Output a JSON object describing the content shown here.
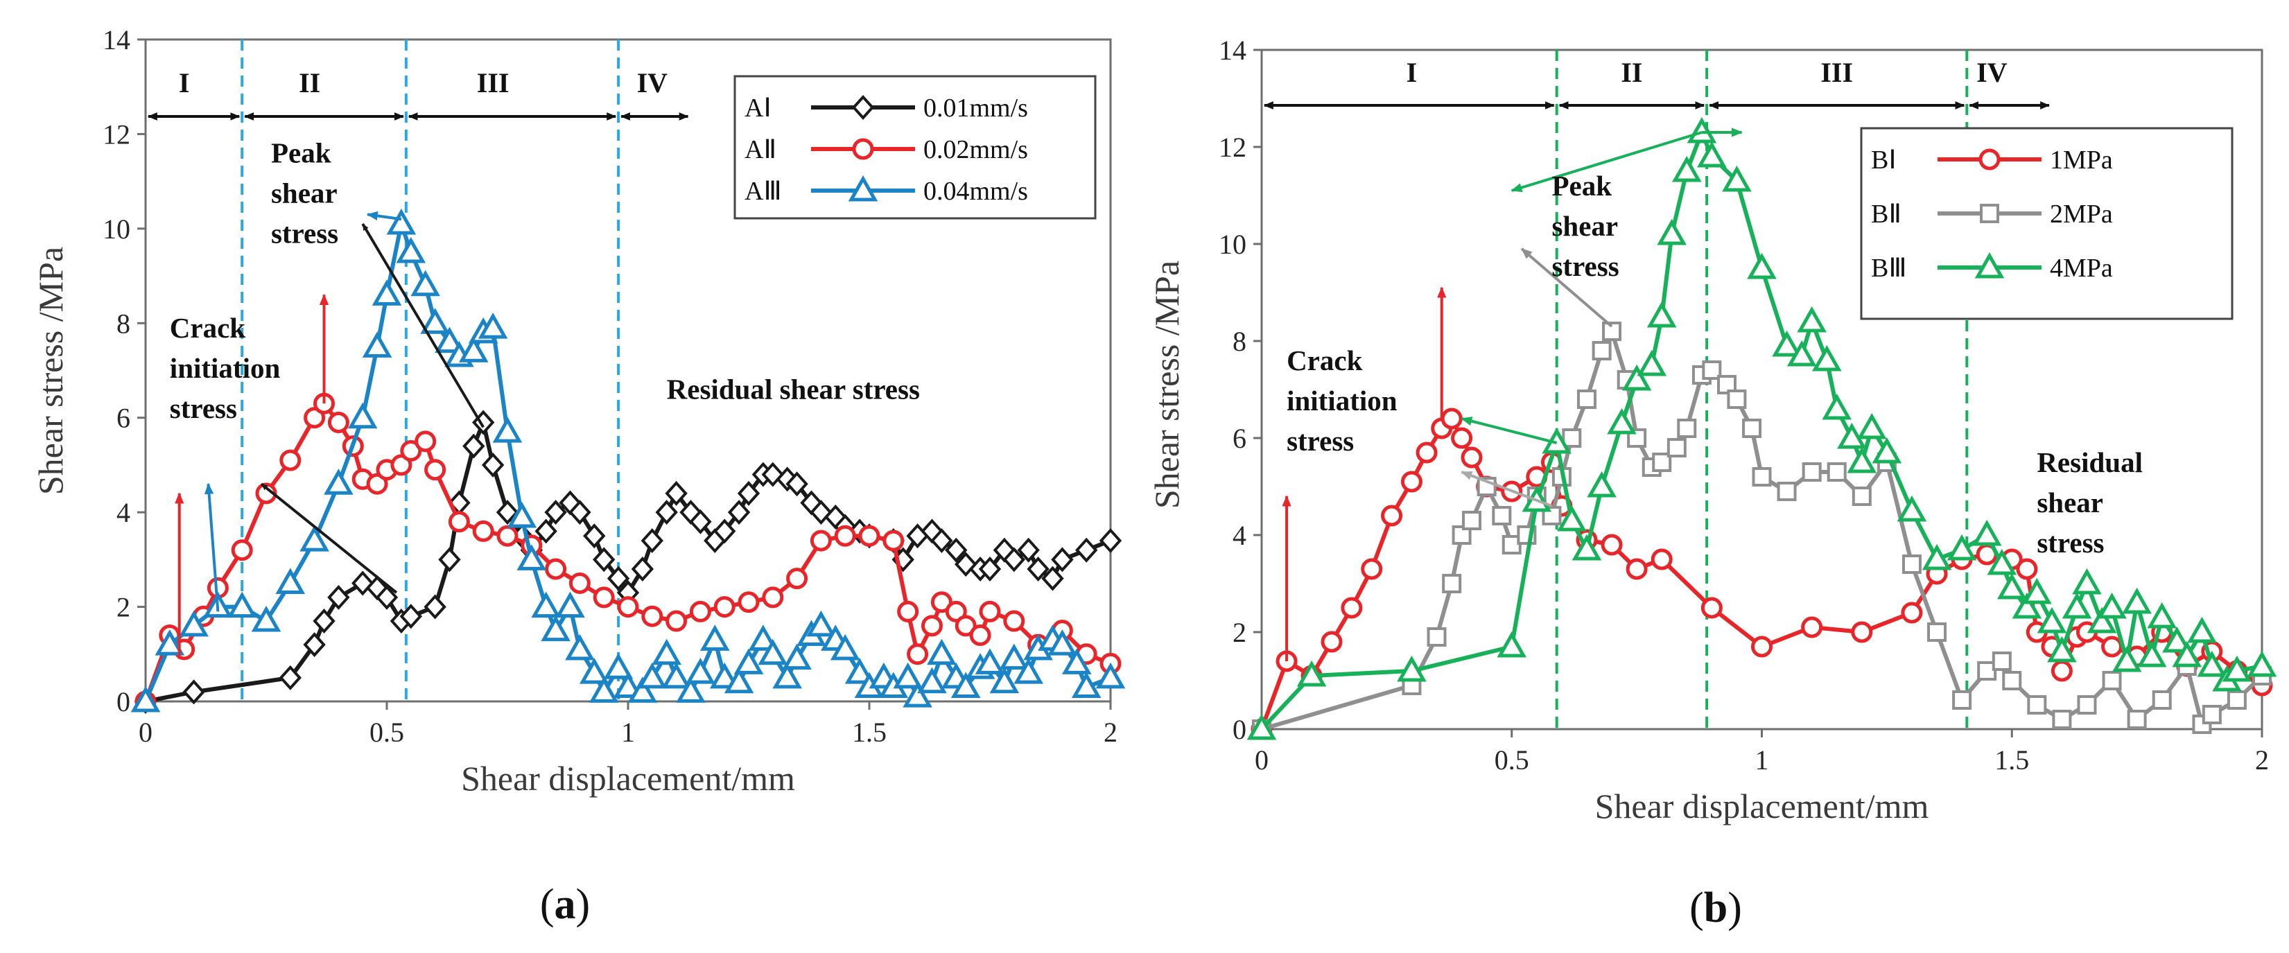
{
  "chart_data": [
    {
      "type": "line",
      "panel_label": "a",
      "xlabel": "Shear displacement/mm",
      "ylabel": "Shear stress /MPa",
      "xlim": [
        0,
        2
      ],
      "ylim": [
        0,
        14
      ],
      "xticks": [
        "0",
        "0.5",
        "1",
        "1.5",
        "2"
      ],
      "yticks": [
        "0",
        "2",
        "4",
        "6",
        "8",
        "10",
        "12",
        "14"
      ],
      "grid": false,
      "legend_position": "top-right",
      "stage_boundaries": [
        0.2,
        0.54,
        0.98
      ],
      "stage_label_positions": [
        0.08,
        0.34,
        0.72,
        1.05
      ],
      "stages": [
        "I",
        "II",
        "III",
        "IV"
      ],
      "annotations": [
        {
          "text": "Peak\nshear\nstress",
          "x": 0.26,
          "y": 11.4
        },
        {
          "text": "Crack\ninitiation\nstress",
          "x": 0.05,
          "y": 7.7
        },
        {
          "text": "Residual shear stress",
          "x": 1.08,
          "y": 6.4
        }
      ],
      "arrows": [
        {
          "from": [
            0.07,
            0.9
          ],
          "to": [
            0.07,
            4.4
          ],
          "color": "#e8262a"
        },
        {
          "from": [
            0.15,
            1.9
          ],
          "to": [
            0.13,
            4.6
          ],
          "color": "#1a84c6"
        },
        {
          "from": [
            0.37,
            6.3
          ],
          "to": [
            0.37,
            8.6
          ],
          "color": "#e8262a"
        },
        {
          "from": [
            0.52,
            2.3
          ],
          "to": [
            0.24,
            4.6
          ],
          "color": "#1a1a1a"
        },
        {
          "from": [
            0.7,
            5.8
          ],
          "to": [
            0.45,
            10.1
          ],
          "color": "#1a1a1a"
        },
        {
          "from": [
            0.53,
            10.2
          ],
          "to": [
            0.46,
            10.3
          ],
          "color": "#1a84c6"
        }
      ],
      "series": [
        {
          "name": "AⅠ",
          "rate": "0.01mm/s",
          "color": "#1a1a1a",
          "marker": "diamond",
          "x": [
            0,
            0.1,
            0.3,
            0.35,
            0.37,
            0.4,
            0.45,
            0.48,
            0.5,
            0.53,
            0.55,
            0.6,
            0.63,
            0.65,
            0.68,
            0.7,
            0.72,
            0.75,
            0.78,
            0.8,
            0.83,
            0.85,
            0.88,
            0.9,
            0.93,
            0.95,
            0.98,
            1.0,
            1.03,
            1.05,
            1.08,
            1.1,
            1.13,
            1.15,
            1.18,
            1.2,
            1.23,
            1.25,
            1.28,
            1.3,
            1.33,
            1.35,
            1.38,
            1.4,
            1.43,
            1.45,
            1.48,
            1.5,
            1.55,
            1.57,
            1.6,
            1.63,
            1.65,
            1.68,
            1.7,
            1.73,
            1.75,
            1.78,
            1.8,
            1.83,
            1.85,
            1.88,
            1.9,
            1.95,
            2.0
          ],
          "y": [
            0,
            0.2,
            0.5,
            1.2,
            1.7,
            2.2,
            2.5,
            2.4,
            2.2,
            1.7,
            1.8,
            2.0,
            3.0,
            4.2,
            5.4,
            5.9,
            5.0,
            4.0,
            3.5,
            3.2,
            3.6,
            4.0,
            4.2,
            4.0,
            3.5,
            3.0,
            2.6,
            2.3,
            2.8,
            3.4,
            4.0,
            4.4,
            4.0,
            3.8,
            3.4,
            3.6,
            4.0,
            4.4,
            4.8,
            4.8,
            4.7,
            4.6,
            4.2,
            4.0,
            3.9,
            3.7,
            3.6,
            3.5,
            3.4,
            3.0,
            3.5,
            3.6,
            3.4,
            3.2,
            2.9,
            2.8,
            2.8,
            3.2,
            3.0,
            3.2,
            2.8,
            2.6,
            3.0,
            3.2,
            3.4
          ]
        },
        {
          "name": "AⅡ",
          "rate": "0.02mm/s",
          "color": "#e8262a",
          "marker": "circle",
          "x": [
            0,
            0.05,
            0.08,
            0.12,
            0.15,
            0.2,
            0.25,
            0.3,
            0.35,
            0.37,
            0.4,
            0.43,
            0.45,
            0.48,
            0.5,
            0.53,
            0.55,
            0.58,
            0.6,
            0.65,
            0.7,
            0.75,
            0.8,
            0.85,
            0.9,
            0.95,
            1.0,
            1.05,
            1.1,
            1.15,
            1.2,
            1.25,
            1.3,
            1.35,
            1.4,
            1.45,
            1.5,
            1.55,
            1.58,
            1.6,
            1.63,
            1.65,
            1.68,
            1.7,
            1.73,
            1.75,
            1.8,
            1.85,
            1.9,
            1.95,
            2.0
          ],
          "y": [
            0,
            1.4,
            1.1,
            1.8,
            2.4,
            3.2,
            4.4,
            5.1,
            6.0,
            6.3,
            5.9,
            5.4,
            4.7,
            4.6,
            4.9,
            5.0,
            5.3,
            5.5,
            4.9,
            3.8,
            3.6,
            3.5,
            3.3,
            2.8,
            2.5,
            2.2,
            2.0,
            1.8,
            1.7,
            1.9,
            2.0,
            2.1,
            2.2,
            2.6,
            3.4,
            3.5,
            3.5,
            3.4,
            1.9,
            1.0,
            1.6,
            2.1,
            1.9,
            1.6,
            1.4,
            1.9,
            1.7,
            1.2,
            1.5,
            1.0,
            0.8
          ]
        },
        {
          "name": "AⅢ",
          "rate": "0.04mm/s",
          "color": "#1a84c6",
          "marker": "triangle",
          "x": [
            0,
            0.05,
            0.1,
            0.15,
            0.2,
            0.25,
            0.3,
            0.35,
            0.4,
            0.45,
            0.48,
            0.5,
            0.53,
            0.55,
            0.58,
            0.6,
            0.63,
            0.65,
            0.68,
            0.7,
            0.72,
            0.75,
            0.78,
            0.8,
            0.83,
            0.85,
            0.88,
            0.9,
            0.93,
            0.95,
            0.98,
            1.0,
            1.03,
            1.05,
            1.08,
            1.1,
            1.13,
            1.15,
            1.18,
            1.2,
            1.23,
            1.25,
            1.28,
            1.3,
            1.33,
            1.35,
            1.38,
            1.4,
            1.43,
            1.45,
            1.48,
            1.5,
            1.53,
            1.55,
            1.58,
            1.6,
            1.63,
            1.65,
            1.68,
            1.7,
            1.73,
            1.75,
            1.78,
            1.8,
            1.83,
            1.85,
            1.88,
            1.9,
            1.93,
            1.95,
            2.0
          ],
          "y": [
            0,
            1.2,
            1.6,
            2.0,
            2.0,
            1.7,
            2.5,
            3.4,
            4.6,
            6.0,
            7.5,
            8.6,
            10.1,
            9.5,
            8.8,
            8.0,
            7.6,
            7.3,
            7.4,
            7.8,
            7.9,
            5.7,
            3.9,
            3.0,
            2.0,
            1.5,
            2.0,
            1.1,
            0.6,
            0.2,
            0.7,
            0.3,
            0.2,
            0.5,
            1.0,
            0.5,
            0.2,
            0.6,
            1.3,
            0.5,
            0.4,
            0.8,
            1.3,
            1.0,
            0.5,
            0.9,
            1.4,
            1.6,
            1.3,
            1.1,
            0.6,
            0.3,
            0.5,
            0.3,
            0.5,
            0.1,
            0.4,
            1.0,
            0.5,
            0.3,
            0.7,
            0.8,
            0.4,
            0.9,
            0.6,
            1.1,
            1.3,
            1.2,
            0.8,
            0.3,
            0.5
          ]
        }
      ]
    },
    {
      "type": "line",
      "panel_label": "b",
      "xlabel": "Shear displacement/mm",
      "ylabel": "Shear stress /MPa",
      "xlim": [
        0,
        2
      ],
      "ylim": [
        0,
        14
      ],
      "xticks": [
        "0",
        "0.5",
        "1",
        "1.5",
        "2"
      ],
      "yticks": [
        "0",
        "2",
        "4",
        "6",
        "8",
        "10",
        "12",
        "14"
      ],
      "grid": false,
      "legend_position": "top-right",
      "stage_boundaries": [
        0.59,
        0.89,
        1.41
      ],
      "stage_label_positions": [
        0.3,
        0.74,
        1.15,
        1.46
      ],
      "stages": [
        "I",
        "II",
        "III",
        "IV"
      ],
      "annotations": [
        {
          "text": "Peak\nshear\nstress",
          "x": 0.58,
          "y": 11.0
        },
        {
          "text": "Crack\ninitiation\nstress",
          "x": 0.05,
          "y": 7.4
        },
        {
          "text": "Residual\nshear\nstress",
          "x": 1.55,
          "y": 5.3
        }
      ],
      "arrows": [
        {
          "from": [
            0.05,
            1.4
          ],
          "to": [
            0.05,
            4.8
          ],
          "color": "#e8262a"
        },
        {
          "from": [
            0.36,
            6.4
          ],
          "to": [
            0.36,
            9.1
          ],
          "color": "#e8262a"
        },
        {
          "from": [
            0.59,
            5.9
          ],
          "to": [
            0.4,
            6.4
          ],
          "color": "#17b15a"
        },
        {
          "from": [
            0.58,
            4.6
          ],
          "to": [
            0.4,
            5.3
          ],
          "color": "#a9a9a9"
        },
        {
          "from": [
            0.7,
            8.3
          ],
          "to": [
            0.52,
            9.9
          ],
          "color": "#8f8f8f"
        },
        {
          "from": [
            0.88,
            12.3
          ],
          "to": [
            0.5,
            11.1
          ],
          "color": "#17b15a"
        },
        {
          "from": [
            0.88,
            12.3
          ],
          "to": [
            0.96,
            12.3
          ],
          "color": "#17b15a"
        }
      ],
      "series": [
        {
          "name": "BⅠ",
          "stress": "1MPa",
          "color": "#e8262a",
          "marker": "circle",
          "x": [
            0,
            0.05,
            0.1,
            0.14,
            0.18,
            0.22,
            0.26,
            0.3,
            0.33,
            0.36,
            0.38,
            0.4,
            0.42,
            0.45,
            0.5,
            0.55,
            0.58,
            0.6,
            0.65,
            0.7,
            0.75,
            0.8,
            0.9,
            1.0,
            1.1,
            1.2,
            1.3,
            1.35,
            1.4,
            1.45,
            1.5,
            1.53,
            1.55,
            1.58,
            1.6,
            1.63,
            1.65,
            1.7,
            1.75,
            1.8,
            1.85,
            1.9,
            1.95,
            2.0
          ],
          "y": [
            0,
            1.4,
            1.1,
            1.8,
            2.5,
            3.3,
            4.4,
            5.1,
            5.7,
            6.2,
            6.4,
            6.0,
            5.6,
            5.0,
            4.9,
            5.2,
            5.5,
            4.6,
            3.9,
            3.8,
            3.3,
            3.5,
            2.5,
            1.7,
            2.1,
            2.0,
            2.4,
            3.2,
            3.5,
            3.6,
            3.5,
            3.3,
            2.0,
            1.7,
            1.2,
            1.9,
            2.0,
            1.7,
            1.5,
            2.0,
            1.3,
            1.6,
            1.2,
            0.9
          ]
        },
        {
          "name": "BⅡ",
          "stress": "2MPa",
          "color": "#8f8f8f",
          "marker": "square",
          "x": [
            0,
            0.3,
            0.35,
            0.38,
            0.4,
            0.42,
            0.45,
            0.48,
            0.5,
            0.53,
            0.55,
            0.58,
            0.6,
            0.62,
            0.65,
            0.68,
            0.7,
            0.73,
            0.75,
            0.78,
            0.8,
            0.83,
            0.85,
            0.88,
            0.9,
            0.93,
            0.95,
            0.98,
            1.0,
            1.05,
            1.1,
            1.15,
            1.2,
            1.25,
            1.3,
            1.35,
            1.4,
            1.45,
            1.48,
            1.5,
            1.55,
            1.6,
            1.65,
            1.7,
            1.75,
            1.8,
            1.85,
            1.88,
            1.9,
            1.95,
            2.0
          ],
          "y": [
            0,
            0.9,
            1.9,
            3.0,
            4.0,
            4.3,
            5.0,
            4.4,
            3.8,
            4.0,
            4.8,
            4.4,
            5.2,
            6.0,
            6.8,
            7.8,
            8.2,
            7.2,
            6.0,
            5.4,
            5.5,
            5.8,
            6.2,
            7.3,
            7.4,
            7.1,
            6.8,
            6.2,
            5.2,
            4.9,
            5.3,
            5.3,
            4.8,
            5.5,
            3.4,
            2.0,
            0.6,
            1.2,
            1.4,
            1.0,
            0.5,
            0.2,
            0.5,
            1.0,
            0.2,
            0.6,
            1.3,
            0.1,
            0.3,
            0.6,
            1.1
          ]
        },
        {
          "name": "BⅢ",
          "stress": "4MPa",
          "color": "#17b15a",
          "marker": "triangle",
          "x": [
            0,
            0.1,
            0.3,
            0.5,
            0.55,
            0.59,
            0.62,
            0.65,
            0.68,
            0.72,
            0.75,
            0.78,
            0.8,
            0.82,
            0.85,
            0.88,
            0.9,
            0.95,
            1.0,
            1.05,
            1.08,
            1.1,
            1.13,
            1.15,
            1.18,
            1.2,
            1.22,
            1.25,
            1.3,
            1.35,
            1.4,
            1.45,
            1.48,
            1.5,
            1.53,
            1.55,
            1.58,
            1.6,
            1.63,
            1.65,
            1.68,
            1.7,
            1.73,
            1.75,
            1.78,
            1.8,
            1.83,
            1.85,
            1.88,
            1.9,
            1.93,
            1.95,
            2.0
          ],
          "y": [
            0,
            1.1,
            1.2,
            1.7,
            4.7,
            5.9,
            4.3,
            3.7,
            5.0,
            6.3,
            7.2,
            7.5,
            8.5,
            10.2,
            11.5,
            12.3,
            11.8,
            11.3,
            9.5,
            7.9,
            7.7,
            8.4,
            7.6,
            6.6,
            6.0,
            5.5,
            6.2,
            5.7,
            4.5,
            3.5,
            3.7,
            4.0,
            3.4,
            2.9,
            2.5,
            2.8,
            2.2,
            1.6,
            2.5,
            3.0,
            2.2,
            2.5,
            1.4,
            2.6,
            1.5,
            2.3,
            1.8,
            1.5,
            2.0,
            1.3,
            1.0,
            1.2,
            1.3
          ]
        }
      ]
    }
  ]
}
